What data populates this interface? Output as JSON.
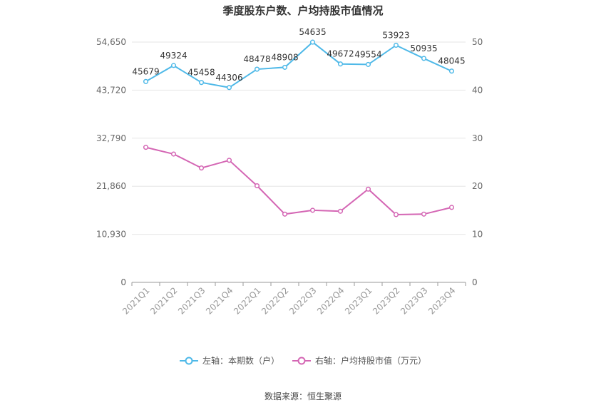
{
  "chart_data": {
    "type": "line",
    "title": "季度股东户数、户均持股市值情况",
    "categories": [
      "2021Q1",
      "2021Q2",
      "2021Q3",
      "2021Q4",
      "2022Q1",
      "2022Q2",
      "2022Q3",
      "2022Q4",
      "2023Q1",
      "2023Q2",
      "2023Q3",
      "2023Q4"
    ],
    "series": [
      {
        "name": "左轴：本期数（户）",
        "axis": "left",
        "color": "#4fb9e8",
        "values": [
          45679,
          49324,
          45458,
          44306,
          48478,
          48908,
          54635,
          49672,
          49554,
          53923,
          50935,
          48045
        ],
        "labels": [
          "45679",
          "49324",
          "45458",
          "44306",
          "48478",
          "48908",
          "54635",
          "49672",
          "49554",
          "53923",
          "50935",
          "48045"
        ]
      },
      {
        "name": "右轴：户均持股市值（万元）",
        "axis": "right",
        "color": "#d466b4",
        "values": [
          28.1,
          26.7,
          23.8,
          25.4,
          20.1,
          14.2,
          15.0,
          14.8,
          19.4,
          14.1,
          14.2,
          15.6
        ]
      }
    ],
    "left_axis": {
      "min": 0,
      "max": 54650,
      "ticks": [
        0,
        10930,
        21860,
        32790,
        43720,
        54650
      ],
      "tick_labels": [
        "0",
        "10,930",
        "21,860",
        "32,790",
        "43,720",
        "54,650"
      ]
    },
    "right_axis": {
      "min": 0,
      "max": 50,
      "ticks": [
        0,
        10,
        20,
        30,
        40,
        50
      ],
      "tick_labels": [
        "0",
        "10",
        "20",
        "30",
        "40",
        "50"
      ]
    },
    "grid": true,
    "legend_position": "bottom"
  },
  "source_note": "数据来源：恒生聚源"
}
